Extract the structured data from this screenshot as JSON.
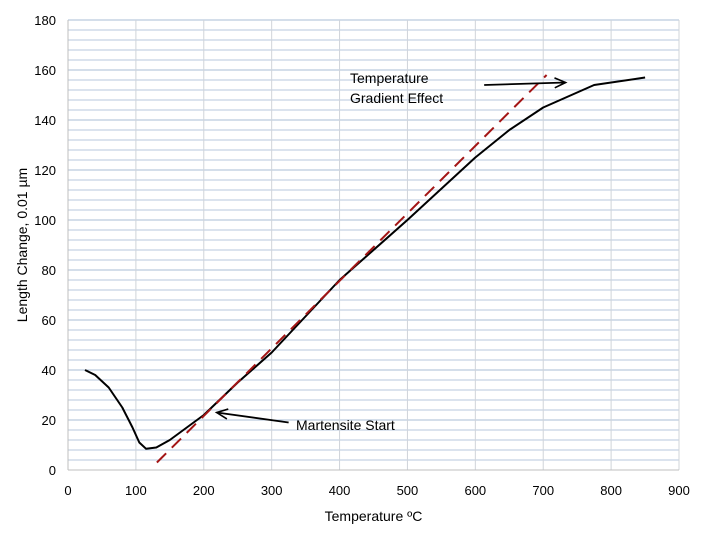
{
  "chart_data": {
    "type": "line",
    "title": "",
    "xlabel": "Temperature ºC",
    "ylabel": "Length Change, 0.01 µm",
    "xlim": [
      0,
      900
    ],
    "ylim": [
      0,
      180
    ],
    "xticks": [
      0,
      100,
      200,
      300,
      400,
      500,
      600,
      700,
      800,
      900
    ],
    "yticks": [
      0,
      20,
      40,
      60,
      80,
      100,
      120,
      140,
      160,
      180
    ],
    "y_minor_step": 4,
    "grid": true,
    "series": [
      {
        "style": "solid",
        "color": "#000000",
        "points": [
          [
            25,
            40
          ],
          [
            40,
            38
          ],
          [
            60,
            33
          ],
          [
            80,
            25
          ],
          [
            95,
            17
          ],
          [
            105,
            11
          ],
          [
            115,
            8.5
          ],
          [
            130,
            9
          ],
          [
            150,
            12
          ],
          [
            175,
            17
          ],
          [
            200,
            22
          ],
          [
            250,
            35
          ],
          [
            300,
            47
          ],
          [
            400,
            76
          ],
          [
            500,
            100
          ],
          [
            600,
            125
          ],
          [
            650,
            136
          ],
          [
            700,
            145
          ],
          [
            775,
            154
          ],
          [
            850,
            157
          ]
        ]
      },
      {
        "style": "dashed",
        "color": "#a31515",
        "points": [
          [
            131,
            3
          ],
          [
            705,
            158
          ]
        ]
      }
    ],
    "annotations": [
      {
        "text": "Martensite Start",
        "at": [
          310,
          17
        ],
        "arrow_from": [
          325,
          19
        ],
        "arrow_to": [
          219,
          23
        ]
      },
      {
        "text": [
          "Temperature",
          "Gradient Effect"
        ],
        "at": [
          415,
          157
        ],
        "arrow_from": [
          613,
          154
        ],
        "arrow_to": [
          733,
          155
        ]
      }
    ]
  }
}
